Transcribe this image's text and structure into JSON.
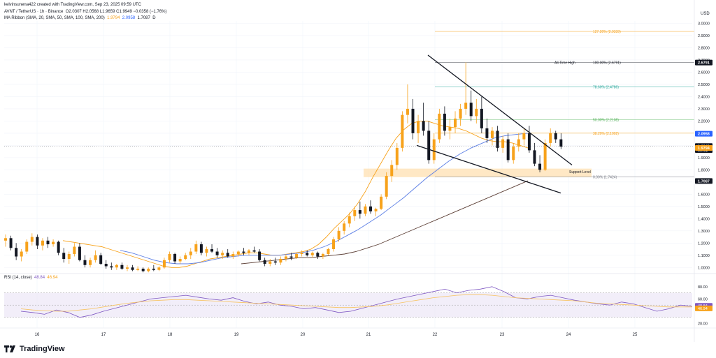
{
  "header": {
    "attribution": "kelvinsunena422 created with TradingView.com, Sep 23, 2025 09:59 UTC",
    "symbol": "AVNT / TetherUS · 1h · Binance",
    "ohlc": "O2.0307 H2.0568 L1.9659 C1.9949 −0.0358 (−1.76%)",
    "indicator_name": "MA Ribbon (SMA, 20, SMA, 50, SMA, 100, SMA, 200)",
    "ma20": "1.9794",
    "ma50": "2.0958",
    "ma100": "1.7087",
    "ma_suffix": "D"
  },
  "currency": "USD",
  "rsi": {
    "label": "RSI (14, close)",
    "value1": "48.84",
    "value2": "46.94",
    "axis_ticks": [
      "80.00",
      "60.00",
      "20.00"
    ],
    "badge_values": [
      "48.84",
      "46.94"
    ]
  },
  "chart_data": {
    "type": "candlestick",
    "xlabels": [
      "16",
      "17",
      "18",
      "19",
      "20",
      "21",
      "22",
      "23",
      "24",
      "25"
    ],
    "y_ticks": [
      "1.0000",
      "1.1000",
      "1.2000",
      "1.3000",
      "1.4000",
      "1.5000",
      "1.6000",
      "1.7000",
      "1.8000",
      "1.9000",
      "2.0000",
      "2.1000",
      "2.2000",
      "2.3000",
      "2.4000",
      "2.5000",
      "2.6000",
      "2.7000",
      "2.8000",
      "2.9000",
      "3.0000"
    ],
    "ylim": [
      0.95,
      3.02
    ],
    "price_badges": [
      {
        "value": 2.6791,
        "label": "2.6791",
        "color": "#131722"
      },
      {
        "value": 2.0958,
        "label": "2.0958",
        "color": "#2962ff"
      },
      {
        "value": 1.9949,
        "label": "1.9949",
        "color": "#131722"
      },
      {
        "value": 1.962,
        "label": "00:01",
        "color": "#131722"
      },
      {
        "value": 1.9794,
        "label": "1.9794",
        "color": "#f7a21b"
      },
      {
        "value": 1.7087,
        "label": "1.7087",
        "color": "#131722"
      }
    ],
    "fib_levels": [
      {
        "value": 2.9339,
        "label": "127.20% (2.9339)",
        "color": "#f7a21b"
      },
      {
        "value": 2.6791,
        "label": "100.00% (2.6791)",
        "color": "#131722"
      },
      {
        "value": 2.4786,
        "label": "78.60% (2.4786)",
        "color": "#26a69a"
      },
      {
        "value": 2.2108,
        "label": "50.00% (2.2108)",
        "color": "#4caf50"
      },
      {
        "value": 2.1002,
        "label": "38.20% (2.1002)",
        "color": "#f7a21b"
      },
      {
        "value": 1.7424,
        "label": "0.00% (1.7424)",
        "color": "#787b86"
      }
    ],
    "annotations": {
      "all_time_high": "All-Time High",
      "support_level": "Support Level"
    },
    "support_zone": {
      "top": 1.81,
      "bottom": 1.74
    },
    "candles": [
      {
        "o": 1.22,
        "h": 1.27,
        "l": 1.17,
        "c": 1.24
      },
      {
        "o": 1.24,
        "h": 1.26,
        "l": 1.14,
        "c": 1.16
      },
      {
        "o": 1.16,
        "h": 1.2,
        "l": 1.06,
        "c": 1.09
      },
      {
        "o": 1.09,
        "h": 1.15,
        "l": 1.05,
        "c": 1.13
      },
      {
        "o": 1.13,
        "h": 1.23,
        "l": 1.11,
        "c": 1.21
      },
      {
        "o": 1.21,
        "h": 1.28,
        "l": 1.18,
        "c": 1.25
      },
      {
        "o": 1.25,
        "h": 1.27,
        "l": 1.15,
        "c": 1.18
      },
      {
        "o": 1.18,
        "h": 1.24,
        "l": 1.14,
        "c": 1.22
      },
      {
        "o": 1.22,
        "h": 1.25,
        "l": 1.16,
        "c": 1.19
      },
      {
        "o": 1.19,
        "h": 1.23,
        "l": 1.17,
        "c": 1.21
      },
      {
        "o": 1.21,
        "h": 1.22,
        "l": 1.1,
        "c": 1.12
      },
      {
        "o": 1.12,
        "h": 1.16,
        "l": 1.04,
        "c": 1.07
      },
      {
        "o": 1.07,
        "h": 1.13,
        "l": 1.03,
        "c": 1.11
      },
      {
        "o": 1.11,
        "h": 1.2,
        "l": 1.09,
        "c": 1.17
      },
      {
        "o": 1.17,
        "h": 1.2,
        "l": 1.05,
        "c": 1.06
      },
      {
        "o": 1.06,
        "h": 1.1,
        "l": 1.0,
        "c": 1.02
      },
      {
        "o": 1.02,
        "h": 1.08,
        "l": 1.0,
        "c": 1.06
      },
      {
        "o": 1.06,
        "h": 1.14,
        "l": 1.04,
        "c": 1.1
      },
      {
        "o": 1.1,
        "h": 1.12,
        "l": 1.02,
        "c": 1.03
      },
      {
        "o": 1.03,
        "h": 1.06,
        "l": 0.99,
        "c": 1.01
      },
      {
        "o": 1.01,
        "h": 1.04,
        "l": 0.98,
        "c": 1.0
      },
      {
        "o": 1.0,
        "h": 1.03,
        "l": 0.98,
        "c": 1.02
      },
      {
        "o": 1.02,
        "h": 1.04,
        "l": 0.98,
        "c": 0.99
      },
      {
        "o": 0.99,
        "h": 1.02,
        "l": 0.97,
        "c": 1.0
      },
      {
        "o": 1.0,
        "h": 1.02,
        "l": 0.97,
        "c": 0.98
      },
      {
        "o": 0.98,
        "h": 1.01,
        "l": 0.97,
        "c": 0.99
      },
      {
        "o": 0.99,
        "h": 1.0,
        "l": 0.96,
        "c": 0.97
      },
      {
        "o": 0.97,
        "h": 1.0,
        "l": 0.96,
        "c": 0.99
      },
      {
        "o": 0.99,
        "h": 1.02,
        "l": 0.97,
        "c": 0.98
      },
      {
        "o": 0.98,
        "h": 1.01,
        "l": 0.97,
        "c": 1.0
      },
      {
        "o": 1.0,
        "h": 1.08,
        "l": 0.99,
        "c": 1.06
      },
      {
        "o": 1.06,
        "h": 1.13,
        "l": 1.04,
        "c": 1.11
      },
      {
        "o": 1.11,
        "h": 1.12,
        "l": 1.03,
        "c": 1.05
      },
      {
        "o": 1.05,
        "h": 1.09,
        "l": 1.03,
        "c": 1.07
      },
      {
        "o": 1.07,
        "h": 1.12,
        "l": 1.06,
        "c": 1.1
      },
      {
        "o": 1.1,
        "h": 1.16,
        "l": 1.07,
        "c": 1.13
      },
      {
        "o": 1.13,
        "h": 1.22,
        "l": 1.11,
        "c": 1.19
      },
      {
        "o": 1.19,
        "h": 1.21,
        "l": 1.1,
        "c": 1.12
      },
      {
        "o": 1.12,
        "h": 1.17,
        "l": 1.09,
        "c": 1.15
      },
      {
        "o": 1.15,
        "h": 1.19,
        "l": 1.12,
        "c": 1.13
      },
      {
        "o": 1.13,
        "h": 1.16,
        "l": 1.08,
        "c": 1.1
      },
      {
        "o": 1.1,
        "h": 1.14,
        "l": 1.07,
        "c": 1.12
      },
      {
        "o": 1.12,
        "h": 1.15,
        "l": 1.08,
        "c": 1.09
      },
      {
        "o": 1.09,
        "h": 1.13,
        "l": 1.07,
        "c": 1.11
      },
      {
        "o": 1.11,
        "h": 1.14,
        "l": 1.09,
        "c": 1.13
      },
      {
        "o": 1.13,
        "h": 1.16,
        "l": 1.1,
        "c": 1.12
      },
      {
        "o": 1.12,
        "h": 1.15,
        "l": 1.1,
        "c": 1.14
      },
      {
        "o": 1.14,
        "h": 1.17,
        "l": 1.12,
        "c": 1.13
      },
      {
        "o": 1.13,
        "h": 1.15,
        "l": 1.05,
        "c": 1.06
      },
      {
        "o": 1.06,
        "h": 1.08,
        "l": 1.01,
        "c": 1.03
      },
      {
        "o": 1.03,
        "h": 1.07,
        "l": 1.01,
        "c": 1.05
      },
      {
        "o": 1.05,
        "h": 1.08,
        "l": 1.02,
        "c": 1.04
      },
      {
        "o": 1.04,
        "h": 1.09,
        "l": 1.02,
        "c": 1.07
      },
      {
        "o": 1.07,
        "h": 1.11,
        "l": 1.05,
        "c": 1.09
      },
      {
        "o": 1.09,
        "h": 1.12,
        "l": 1.06,
        "c": 1.08
      },
      {
        "o": 1.08,
        "h": 1.12,
        "l": 1.07,
        "c": 1.11
      },
      {
        "o": 1.11,
        "h": 1.14,
        "l": 1.09,
        "c": 1.12
      },
      {
        "o": 1.12,
        "h": 1.14,
        "l": 1.09,
        "c": 1.1
      },
      {
        "o": 1.1,
        "h": 1.13,
        "l": 1.08,
        "c": 1.12
      },
      {
        "o": 1.12,
        "h": 1.13,
        "l": 1.07,
        "c": 1.09
      },
      {
        "o": 1.09,
        "h": 1.12,
        "l": 1.07,
        "c": 1.11
      },
      {
        "o": 1.11,
        "h": 1.16,
        "l": 1.1,
        "c": 1.15
      },
      {
        "o": 1.15,
        "h": 1.25,
        "l": 1.13,
        "c": 1.23
      },
      {
        "o": 1.23,
        "h": 1.33,
        "l": 1.21,
        "c": 1.3
      },
      {
        "o": 1.3,
        "h": 1.38,
        "l": 1.27,
        "c": 1.36
      },
      {
        "o": 1.36,
        "h": 1.45,
        "l": 1.33,
        "c": 1.42
      },
      {
        "o": 1.42,
        "h": 1.5,
        "l": 1.38,
        "c": 1.47
      },
      {
        "o": 1.47,
        "h": 1.54,
        "l": 1.4,
        "c": 1.44
      },
      {
        "o": 1.44,
        "h": 1.52,
        "l": 1.42,
        "c": 1.5
      },
      {
        "o": 1.5,
        "h": 1.55,
        "l": 1.44,
        "c": 1.46
      },
      {
        "o": 1.46,
        "h": 1.49,
        "l": 1.42,
        "c": 1.48
      },
      {
        "o": 1.48,
        "h": 1.6,
        "l": 1.47,
        "c": 1.58
      },
      {
        "o": 1.58,
        "h": 1.78,
        "l": 1.56,
        "c": 1.75
      },
      {
        "o": 1.75,
        "h": 1.88,
        "l": 1.7,
        "c": 1.84
      },
      {
        "o": 1.84,
        "h": 2.02,
        "l": 1.8,
        "c": 1.98
      },
      {
        "o": 1.98,
        "h": 2.28,
        "l": 1.95,
        "c": 2.25
      },
      {
        "o": 2.25,
        "h": 2.5,
        "l": 2.18,
        "c": 2.3
      },
      {
        "o": 2.3,
        "h": 2.38,
        "l": 2.05,
        "c": 2.1
      },
      {
        "o": 2.1,
        "h": 2.25,
        "l": 2.02,
        "c": 2.2
      },
      {
        "o": 2.2,
        "h": 2.35,
        "l": 2.08,
        "c": 2.12
      },
      {
        "o": 2.12,
        "h": 2.2,
        "l": 1.85,
        "c": 1.88
      },
      {
        "o": 1.88,
        "h": 2.1,
        "l": 1.85,
        "c": 2.05
      },
      {
        "o": 2.05,
        "h": 2.3,
        "l": 2.02,
        "c": 2.26
      },
      {
        "o": 2.26,
        "h": 2.32,
        "l": 2.08,
        "c": 2.12
      },
      {
        "o": 2.12,
        "h": 2.22,
        "l": 2.05,
        "c": 2.15
      },
      {
        "o": 2.15,
        "h": 2.28,
        "l": 2.1,
        "c": 2.22
      },
      {
        "o": 2.22,
        "h": 2.34,
        "l": 2.16,
        "c": 2.3
      },
      {
        "o": 2.3,
        "h": 2.68,
        "l": 2.25,
        "c": 2.35
      },
      {
        "o": 2.35,
        "h": 2.45,
        "l": 2.2,
        "c": 2.24
      },
      {
        "o": 2.24,
        "h": 2.38,
        "l": 2.18,
        "c": 2.3
      },
      {
        "o": 2.3,
        "h": 2.4,
        "l": 2.1,
        "c": 2.14
      },
      {
        "o": 2.14,
        "h": 2.22,
        "l": 2.02,
        "c": 2.06
      },
      {
        "o": 2.06,
        "h": 2.15,
        "l": 2.0,
        "c": 2.12
      },
      {
        "o": 2.12,
        "h": 2.16,
        "l": 1.95,
        "c": 1.98
      },
      {
        "o": 1.98,
        "h": 2.08,
        "l": 1.94,
        "c": 2.05
      },
      {
        "o": 2.05,
        "h": 2.1,
        "l": 1.86,
        "c": 1.88
      },
      {
        "o": 1.88,
        "h": 2.02,
        "l": 1.85,
        "c": 1.99
      },
      {
        "o": 1.99,
        "h": 2.1,
        "l": 1.95,
        "c": 2.05
      },
      {
        "o": 2.05,
        "h": 2.14,
        "l": 2.0,
        "c": 2.1
      },
      {
        "o": 2.1,
        "h": 2.16,
        "l": 1.94,
        "c": 1.96
      },
      {
        "o": 1.96,
        "h": 2.02,
        "l": 1.83,
        "c": 1.85
      },
      {
        "o": 1.85,
        "h": 1.92,
        "l": 1.78,
        "c": 1.8
      },
      {
        "o": 1.8,
        "h": 2.05,
        "l": 1.79,
        "c": 2.02
      },
      {
        "o": 2.02,
        "h": 2.14,
        "l": 1.99,
        "c": 2.1
      },
      {
        "o": 2.1,
        "h": 2.12,
        "l": 2.02,
        "c": 2.05
      },
      {
        "o": 2.05,
        "h": 2.1,
        "l": 1.97,
        "c": 1.99
      }
    ],
    "ma20": [
      1.22,
      1.21,
      1.2,
      1.19,
      1.18,
      1.17,
      1.15,
      1.13,
      1.11,
      1.09,
      1.07,
      1.05,
      1.03,
      1.01,
      1.0,
      1.0,
      1.01,
      1.03,
      1.05,
      1.07,
      1.08,
      1.09,
      1.1,
      1.11,
      1.12,
      1.12,
      1.11,
      1.1,
      1.1,
      1.11,
      1.12,
      1.13,
      1.15,
      1.19,
      1.25,
      1.32,
      1.38,
      1.44,
      1.52,
      1.62,
      1.74,
      1.85,
      1.96,
      2.06,
      2.13,
      2.18,
      2.2,
      2.2,
      2.18,
      2.16,
      2.15,
      2.14,
      2.12,
      2.09,
      2.06,
      2.04,
      2.03,
      2.03,
      2.02,
      2.0,
      1.98
    ],
    "ma50": [
      1.14,
      1.12,
      1.09,
      1.06,
      1.04,
      1.03,
      1.03,
      1.04,
      1.06,
      1.08,
      1.09,
      1.1,
      1.1,
      1.1,
      1.1,
      1.11,
      1.12,
      1.14,
      1.17,
      1.21,
      1.26,
      1.31,
      1.37,
      1.43,
      1.5,
      1.57,
      1.65,
      1.73,
      1.8,
      1.87,
      1.93,
      1.98,
      2.02,
      2.06,
      2.08,
      2.09,
      2.1
    ],
    "ma100": [
      1.03,
      1.04,
      1.05,
      1.06,
      1.07,
      1.08,
      1.08,
      1.09,
      1.1,
      1.11,
      1.13,
      1.16,
      1.19,
      1.23,
      1.27,
      1.31,
      1.35,
      1.39,
      1.43,
      1.47,
      1.51,
      1.55,
      1.59,
      1.63,
      1.67,
      1.71
    ]
  }
}
